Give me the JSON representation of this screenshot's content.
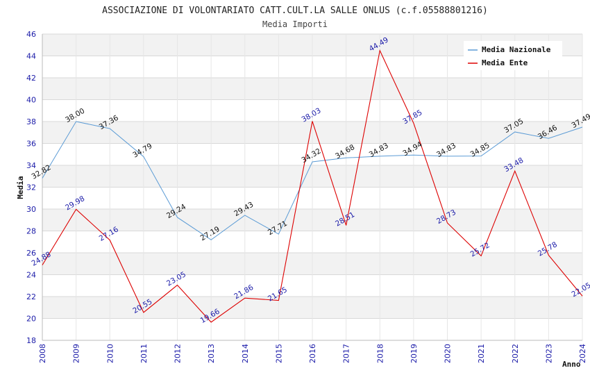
{
  "chart_data": {
    "type": "line",
    "title": "ASSOCIAZIONE DI VOLONTARIATO CATT.CULT.LA SALLE ONLUS (c.f.05588801216)",
    "subtitle": "Media Importi",
    "xlabel": "Anno",
    "ylabel": "Media",
    "ylim": [
      18,
      46
    ],
    "yticks": [
      18,
      20,
      22,
      24,
      26,
      28,
      30,
      32,
      34,
      36,
      38,
      40,
      42,
      44,
      46
    ],
    "x": [
      "2008",
      "2009",
      "2010",
      "2011",
      "2012",
      "2013",
      "2014",
      "2015",
      "2016",
      "2017",
      "2018",
      "2019",
      "2020",
      "2021",
      "2022",
      "2023",
      "2024"
    ],
    "grid": true,
    "legend_position": "top-right",
    "series": [
      {
        "name": "Media Nazionale",
        "color": "#5b9bd5",
        "label_color": "#111111",
        "values": [
          32.82,
          38.0,
          37.36,
          34.79,
          29.24,
          27.19,
          29.43,
          27.71,
          34.32,
          34.68,
          34.83,
          34.94,
          34.83,
          34.85,
          37.05,
          36.46,
          37.49
        ],
        "labels": [
          "32.82",
          "38.00",
          "37.36",
          "34.79",
          "29.24",
          "27.19",
          "29.43",
          "27.71",
          "34.32",
          "34.68",
          "34.83",
          "34.94",
          "34.83",
          "34.85",
          "37.05",
          "36.46",
          "37.49"
        ]
      },
      {
        "name": "Media Ente",
        "color": "#dd0000",
        "label_color": "#1a1aa8",
        "values": [
          24.88,
          29.98,
          27.16,
          20.55,
          23.05,
          19.66,
          21.86,
          21.65,
          38.03,
          28.51,
          44.49,
          37.85,
          28.73,
          25.72,
          33.48,
          25.78,
          22.05
        ],
        "labels": [
          "24.88",
          "29.98",
          "27.16",
          "20.55",
          "23.05",
          "19.66",
          "21.86",
          "21.65",
          "38.03",
          "28.51",
          "44.49",
          "37.85",
          "28.73",
          "25.72",
          "33.48",
          "25.78",
          "22.05"
        ]
      }
    ]
  }
}
